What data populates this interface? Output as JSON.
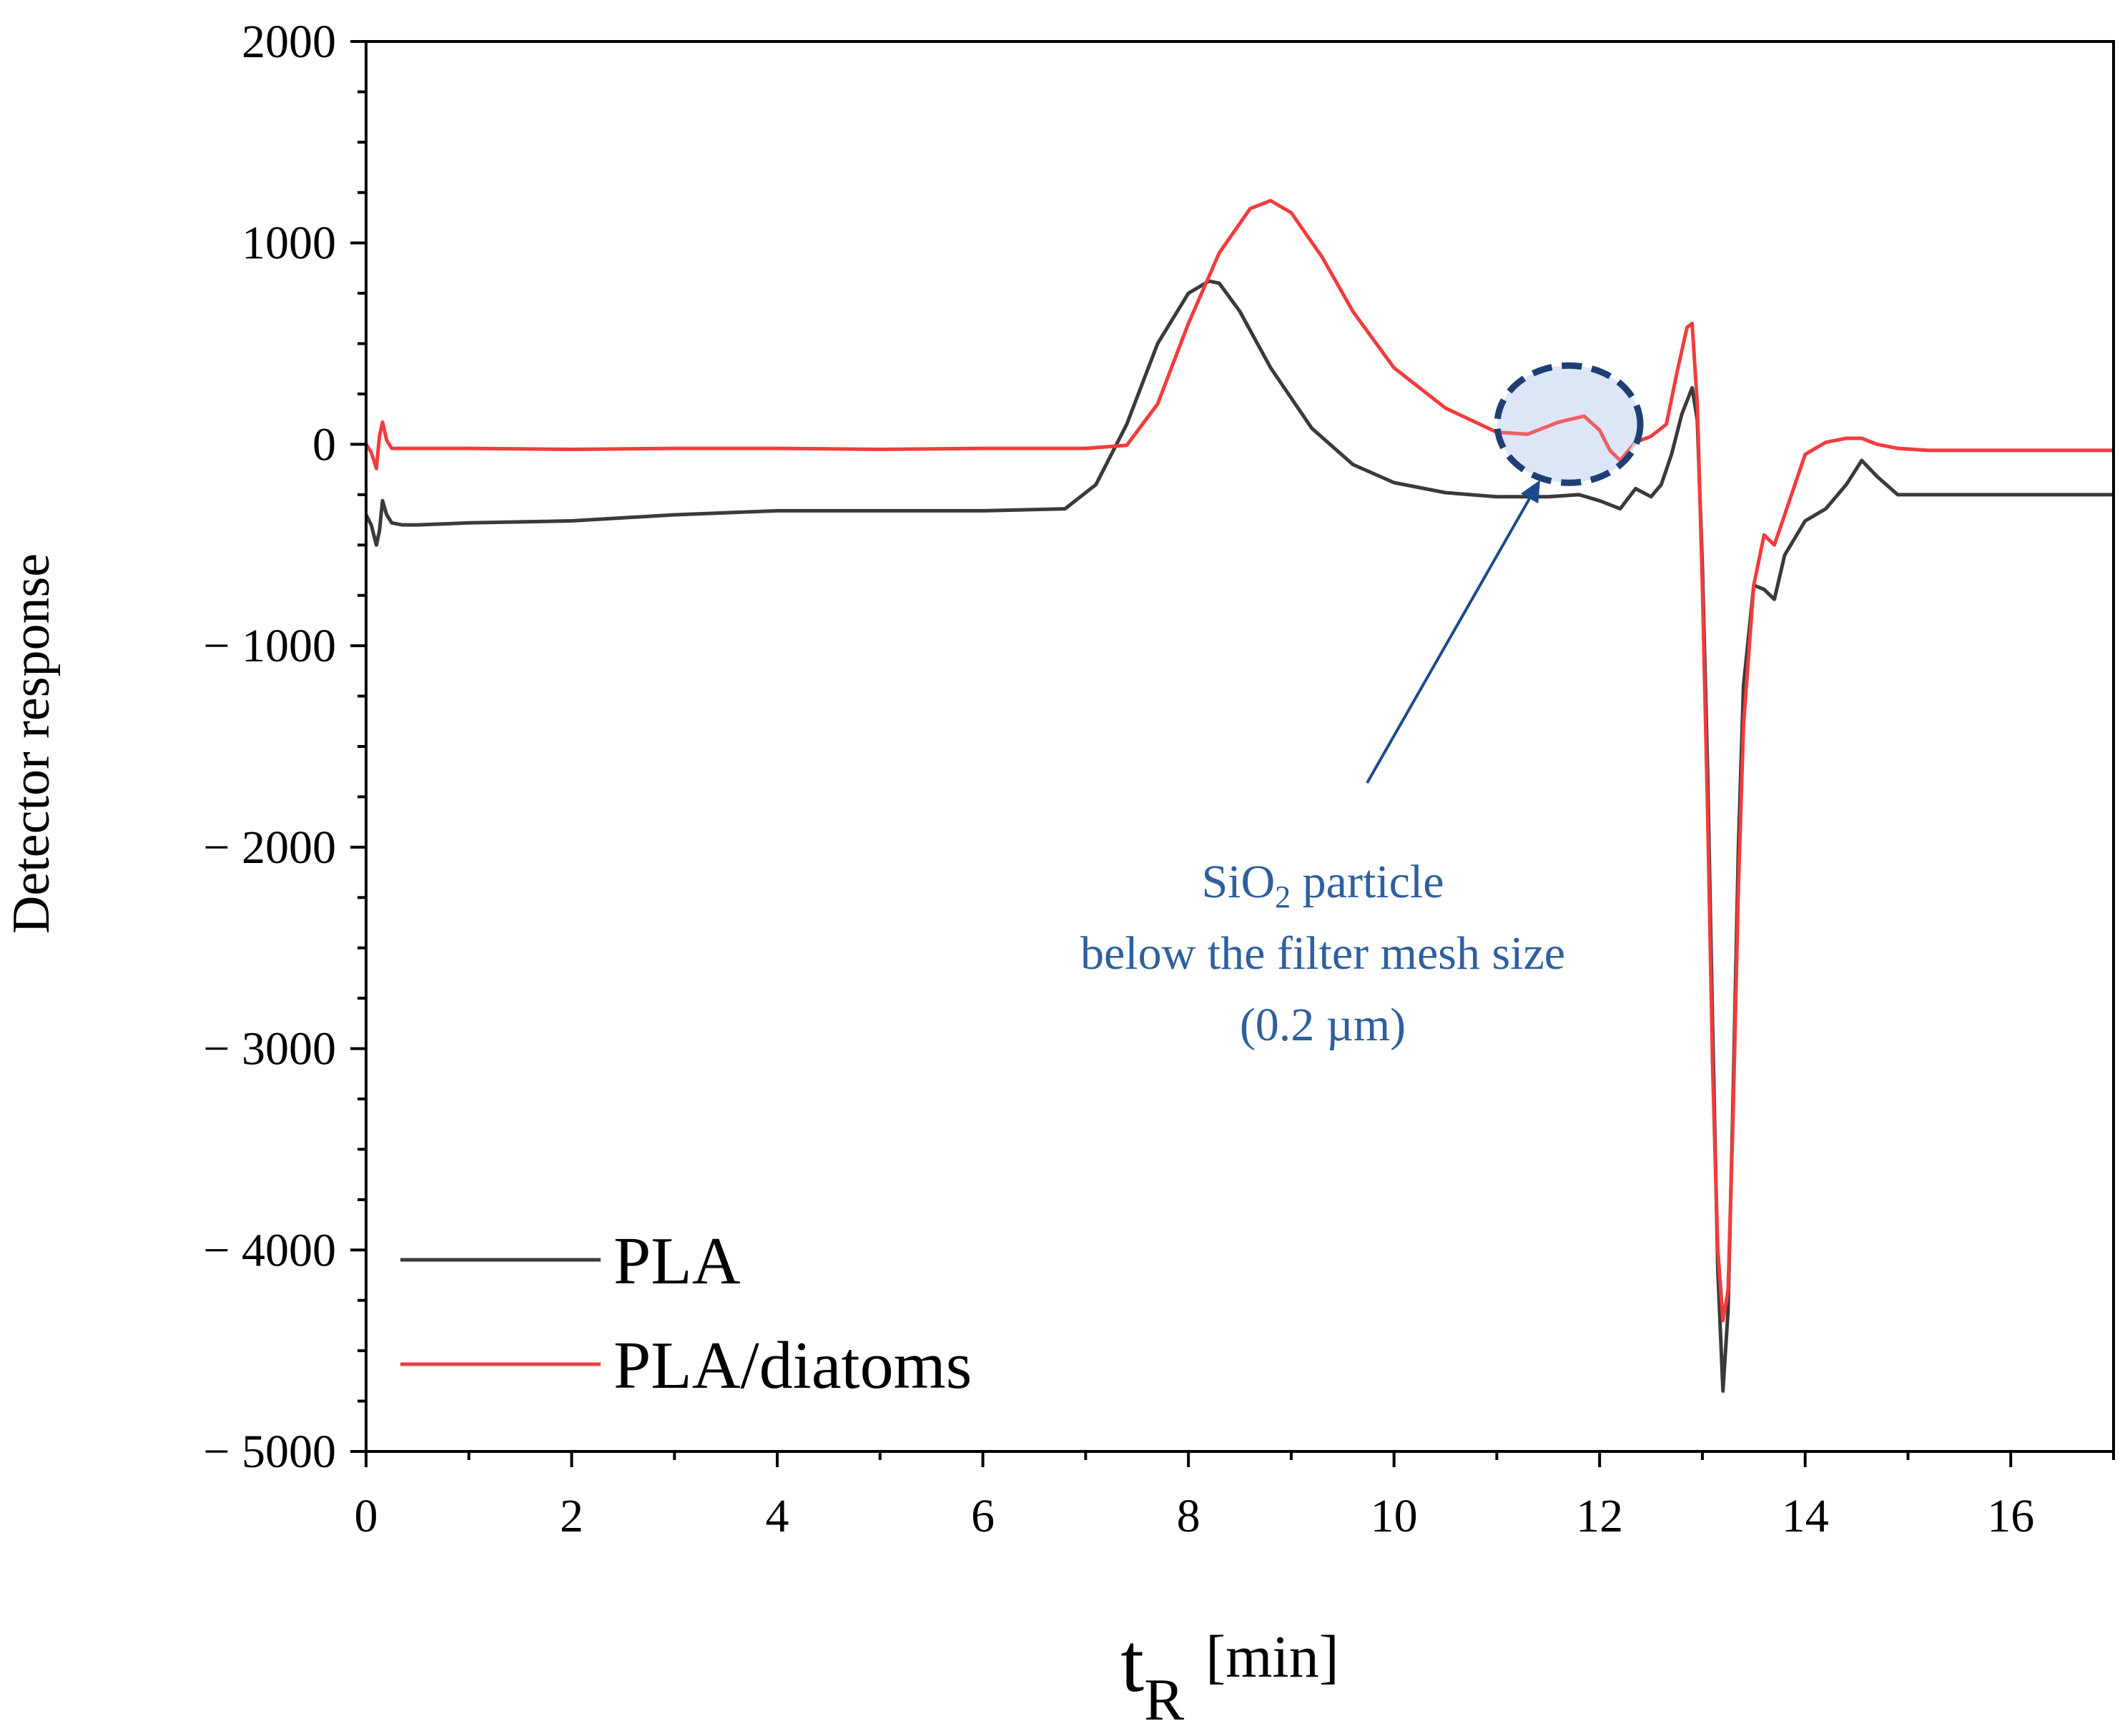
{
  "chart_data": {
    "type": "line",
    "title": "",
    "xlabel_main": "t",
    "xlabel_sub": "R",
    "xlabel_unit": "[min]",
    "ylabel": "Detector response",
    "xlim": [
      0,
      17
    ],
    "ylim": [
      -5000,
      2000
    ],
    "x_ticks": [
      0,
      2,
      4,
      6,
      8,
      10,
      12,
      14,
      16
    ],
    "x_tick_labels": [
      "0",
      "2",
      "4",
      "6",
      "8",
      "10",
      "12",
      "14",
      "16"
    ],
    "y_ticks": [
      2000,
      1000,
      0,
      -1000,
      -2000,
      -3000,
      -4000,
      -5000
    ],
    "y_tick_labels": [
      "2000",
      "1000",
      "0",
      "− 1000",
      "− 2000",
      "− 3000",
      "− 4000",
      "− 5000"
    ],
    "grid": false,
    "legend_position": "bottom-left",
    "series": [
      {
        "name": "PLA",
        "color": "#3a3a3a",
        "x": [
          0,
          0.05,
          0.1,
          0.13,
          0.16,
          0.2,
          0.25,
          0.35,
          0.5,
          1,
          2,
          3,
          4,
          5,
          6,
          6.8,
          7.1,
          7.4,
          7.7,
          8.0,
          8.2,
          8.3,
          8.5,
          8.8,
          9.2,
          9.6,
          10.0,
          10.5,
          11.0,
          11.5,
          11.8,
          12.0,
          12.2,
          12.35,
          12.5,
          12.6,
          12.7,
          12.8,
          12.9,
          12.95,
          13.0,
          13.05,
          13.1,
          13.15,
          13.2,
          13.25,
          13.3,
          13.35,
          13.4,
          13.5,
          13.6,
          13.7,
          13.8,
          14.0,
          14.2,
          14.4,
          14.55,
          14.7,
          14.9,
          15.2,
          16,
          17
        ],
        "y": [
          -350,
          -400,
          -500,
          -430,
          -280,
          -350,
          -390,
          -400,
          -400,
          -390,
          -380,
          -350,
          -330,
          -330,
          -330,
          -320,
          -200,
          100,
          500,
          750,
          810,
          800,
          660,
          380,
          80,
          -100,
          -190,
          -240,
          -260,
          -260,
          -250,
          -280,
          -320,
          -220,
          -260,
          -200,
          -50,
          150,
          280,
          120,
          -600,
          -1600,
          -2900,
          -4100,
          -4700,
          -4300,
          -3200,
          -2000,
          -1200,
          -700,
          -720,
          -770,
          -550,
          -380,
          -320,
          -200,
          -80,
          -160,
          -250,
          -250,
          -250,
          -250
        ]
      },
      {
        "name": "PLA/diatoms",
        "color": "#f23c3c",
        "x": [
          0,
          0.05,
          0.1,
          0.13,
          0.16,
          0.2,
          0.25,
          0.35,
          0.5,
          1,
          2,
          3,
          4,
          5,
          6,
          7.0,
          7.4,
          7.7,
          8.0,
          8.3,
          8.6,
          8.8,
          9.0,
          9.3,
          9.6,
          10.0,
          10.5,
          11.0,
          11.3,
          11.6,
          11.85,
          12.0,
          12.1,
          12.2,
          12.35,
          12.5,
          12.65,
          12.75,
          12.85,
          12.9,
          12.95,
          13.0,
          13.05,
          13.1,
          13.15,
          13.2,
          13.25,
          13.3,
          13.35,
          13.4,
          13.5,
          13.6,
          13.7,
          13.8,
          14.0,
          14.2,
          14.4,
          14.55,
          14.7,
          14.9,
          15.2,
          16,
          17
        ],
        "y": [
          0,
          -40,
          -120,
          40,
          110,
          20,
          -20,
          -20,
          -20,
          -20,
          -25,
          -20,
          -20,
          -25,
          -20,
          -20,
          -5,
          200,
          600,
          950,
          1170,
          1210,
          1150,
          930,
          660,
          380,
          180,
          60,
          50,
          110,
          140,
          70,
          -30,
          -80,
          10,
          40,
          100,
          350,
          580,
          600,
          200,
          -700,
          -1800,
          -3100,
          -4000,
          -4350,
          -4200,
          -3300,
          -2200,
          -1400,
          -700,
          -450,
          -500,
          -350,
          -50,
          10,
          30,
          30,
          0,
          -20,
          -30,
          -30,
          -30
        ]
      }
    ],
    "annotation": {
      "line1_prefix": "SiO",
      "line1_sub": "2",
      "line1_suffix": " particle",
      "line2": "below the filter mesh size",
      "line3": "(0.2 µm)",
      "highlight_x": 11.7,
      "highlight_y": 100,
      "text_color": "#2e5f9e",
      "circle_stroke": "#1d3f73",
      "circle_fill": "#d6e2f5",
      "arrow_color": "#1d4a8a"
    }
  }
}
